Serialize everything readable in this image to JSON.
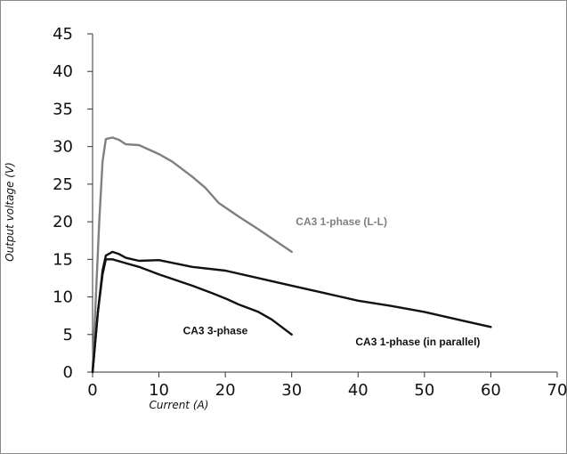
{
  "chart_data": {
    "type": "line",
    "title": "",
    "xlabel": "Current (A)",
    "ylabel": "Output voltage (V)",
    "xlim": [
      0,
      70
    ],
    "ylim": [
      0,
      45
    ],
    "x_ticks": [
      0,
      10,
      20,
      30,
      40,
      50,
      60,
      70
    ],
    "y_ticks": [
      0,
      5,
      10,
      15,
      20,
      25,
      30,
      35,
      40,
      45
    ],
    "grid": false,
    "legend": "none (series labelled directly on plot)",
    "series": [
      {
        "name": "CA3 1-phase (L-L)",
        "color": "#808080",
        "points": [
          [
            0,
            0
          ],
          [
            0.5,
            10
          ],
          [
            1,
            20
          ],
          [
            1.5,
            28
          ],
          [
            2,
            31
          ],
          [
            3,
            31.2
          ],
          [
            4,
            30.9
          ],
          [
            5,
            30.3
          ],
          [
            7,
            30.2
          ],
          [
            10,
            29
          ],
          [
            12,
            28
          ],
          [
            15,
            26
          ],
          [
            17,
            24.5
          ],
          [
            19,
            22.5
          ],
          [
            22,
            20.7
          ],
          [
            25,
            19
          ],
          [
            30,
            16
          ]
        ]
      },
      {
        "name": "CA3 1-phase (in parallel)",
        "color": "#111111",
        "points": [
          [
            0,
            0
          ],
          [
            0.8,
            8
          ],
          [
            1.5,
            13.5
          ],
          [
            2,
            15.5
          ],
          [
            3,
            16
          ],
          [
            4,
            15.7
          ],
          [
            5,
            15.2
          ],
          [
            6,
            15
          ],
          [
            7,
            14.8
          ],
          [
            10,
            14.9
          ],
          [
            15,
            14
          ],
          [
            20,
            13.5
          ],
          [
            25,
            12.5
          ],
          [
            30,
            11.5
          ],
          [
            35,
            10.5
          ],
          [
            40,
            9.5
          ],
          [
            45,
            8.8
          ],
          [
            50,
            8
          ],
          [
            55,
            7
          ],
          [
            60,
            6
          ]
        ]
      },
      {
        "name": "CA3 3-phase",
        "color": "#111111",
        "points": [
          [
            0,
            0
          ],
          [
            0.8,
            8
          ],
          [
            1.5,
            13
          ],
          [
            2,
            15
          ],
          [
            3,
            15
          ],
          [
            5,
            14.5
          ],
          [
            7,
            14
          ],
          [
            10,
            13
          ],
          [
            15,
            11.5
          ],
          [
            18,
            10.5
          ],
          [
            20,
            9.8
          ],
          [
            22,
            9
          ],
          [
            25,
            8
          ],
          [
            27,
            7
          ],
          [
            30,
            5
          ]
        ]
      }
    ],
    "annotations": [
      {
        "text": "CA3 1-phase (L-L)",
        "x": 37.5,
        "y": 20,
        "color": "#808080"
      },
      {
        "text": "CA3 3-phase",
        "x": 18.5,
        "y": 5.5,
        "color": "#111111"
      },
      {
        "text": "CA3 1-phase (in parallel)",
        "x": 49,
        "y": 4,
        "color": "#111111"
      }
    ]
  }
}
